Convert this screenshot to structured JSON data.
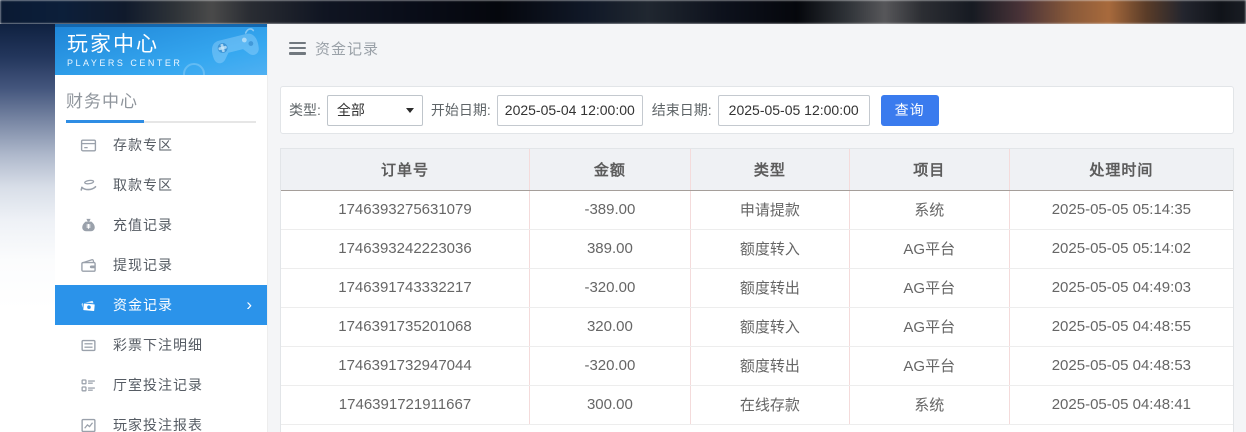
{
  "sidebar": {
    "brand": {
      "title": "玩家中心",
      "subtitle": "PLAYERS CENTER",
      "icon": "game-controller-icon"
    },
    "section_title": "财务中心",
    "items": [
      {
        "key": "deposit-zone",
        "label": "存款专区",
        "icon": "deposit-card-icon",
        "active": false
      },
      {
        "key": "withdraw-zone",
        "label": "取款专区",
        "icon": "withdraw-hand-icon",
        "active": false
      },
      {
        "key": "recharge-records",
        "label": "充值记录",
        "icon": "money-bag-icon",
        "active": false
      },
      {
        "key": "withdraw-records",
        "label": "提现记录",
        "icon": "wallet-icon",
        "active": false
      },
      {
        "key": "fund-records",
        "label": "资金记录",
        "icon": "cash-record-icon",
        "active": true,
        "chevron": "›"
      },
      {
        "key": "lottery-bet-detail",
        "label": "彩票下注明细",
        "icon": "lottery-list-icon",
        "active": false
      },
      {
        "key": "hall-bet-records",
        "label": "厅室投注记录",
        "icon": "hall-bet-list-icon",
        "active": false
      },
      {
        "key": "player-bet-report",
        "label": "玩家投注报表",
        "icon": "report-chart-icon",
        "active": false
      }
    ]
  },
  "breadcrumb": {
    "title": "资金记录",
    "icon": "hamburger-icon"
  },
  "filters": {
    "type_label": "类型:",
    "type_value": "全部",
    "start_label": "开始日期:",
    "start_value": "2025-05-04 12:00:00",
    "end_label": "结束日期:",
    "end_value": "2025-05-05 12:00:00",
    "search_button": "查询"
  },
  "table": {
    "columns": [
      "订单号",
      "金额",
      "类型",
      "项目",
      "处理时间"
    ],
    "rows": [
      [
        "1746393275631079",
        "-389.00",
        "申请提款",
        "系统",
        "2025-05-05 05:14:35"
      ],
      [
        "1746393242223036",
        "389.00",
        "额度转入",
        "AG平台",
        "2025-05-05 05:14:02"
      ],
      [
        "1746391743332217",
        "-320.00",
        "额度转出",
        "AG平台",
        "2025-05-05 04:49:03"
      ],
      [
        "1746391735201068",
        "320.00",
        "额度转入",
        "AG平台",
        "2025-05-05 04:48:55"
      ],
      [
        "1746391732947044",
        "-320.00",
        "额度转出",
        "AG平台",
        "2025-05-05 04:48:53"
      ],
      [
        "1746391721911667",
        "300.00",
        "在线存款",
        "系统",
        "2025-05-05 04:48:41"
      ]
    ]
  },
  "colors": {
    "accent_blue": "#2b93ea",
    "brand_gradient_top": "#1f86d8",
    "brand_gradient_bottom": "#4fb0f2",
    "search_button_blue": "#3a7bee",
    "table_header_bg": "#eff1f4",
    "table_column_divider_pink": "#f4dbdb",
    "table_row_divider": "#ededed",
    "main_background": "#f4f5f7"
  }
}
